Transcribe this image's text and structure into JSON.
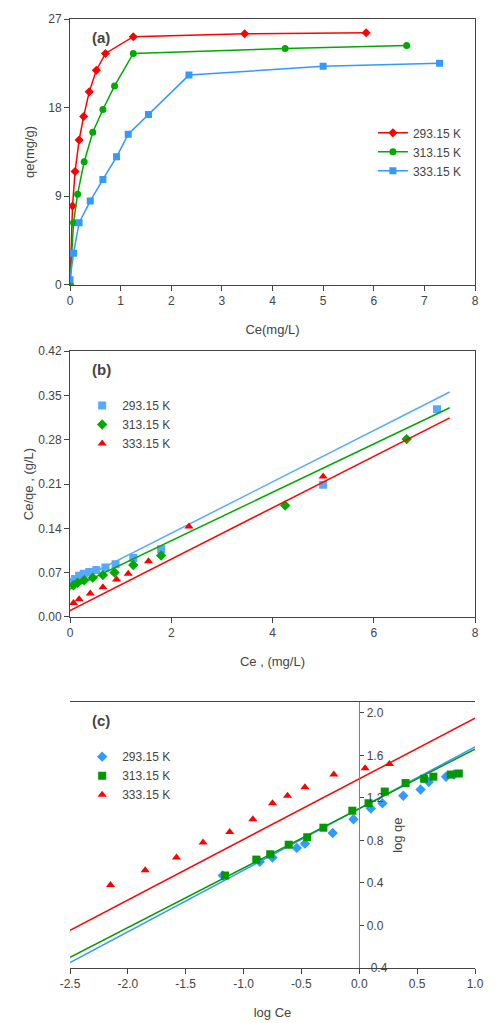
{
  "chart_data": [
    {
      "type": "line",
      "title": "(a)",
      "xlabel": "Ce(mg/L)",
      "ylabel": "qe(mg/g)",
      "xlim": [
        0,
        8
      ],
      "ylim": [
        0,
        27
      ],
      "xticks": [
        0,
        1,
        2,
        3,
        4,
        5,
        6,
        7,
        8
      ],
      "yticks": [
        0,
        9,
        18,
        27
      ],
      "grid": false,
      "legend": "right",
      "series": [
        {
          "name": "293.15 K",
          "color": "red",
          "marker": "diamond",
          "x": [
            0.0,
            0.05,
            0.1,
            0.18,
            0.27,
            0.38,
            0.52,
            0.7,
            1.25,
            3.45,
            5.85
          ],
          "y": [
            0.0,
            8.0,
            11.5,
            14.7,
            17.1,
            19.6,
            21.8,
            23.5,
            25.2,
            25.5,
            25.6
          ]
        },
        {
          "name": "313.15 K",
          "color": "#00aa00",
          "marker": "circle",
          "x": [
            0.0,
            0.07,
            0.15,
            0.28,
            0.45,
            0.65,
            0.88,
            1.25,
            4.25,
            6.65
          ],
          "y": [
            0.0,
            6.3,
            9.2,
            12.5,
            15.5,
            17.8,
            20.2,
            23.5,
            24.0,
            24.3
          ]
        },
        {
          "name": "333.15 K",
          "color": "#3399ff",
          "marker": "square",
          "x": [
            0.0,
            0.07,
            0.18,
            0.4,
            0.65,
            0.92,
            1.15,
            1.55,
            2.35,
            5.0,
            7.3
          ],
          "y": [
            0.5,
            3.2,
            6.3,
            8.5,
            10.7,
            13.0,
            15.3,
            17.3,
            21.3,
            22.2,
            22.5
          ]
        }
      ]
    },
    {
      "type": "scatter",
      "title": "(b)",
      "xlabel": "Ce , (mg/L)",
      "ylabel": "Ce/qe , (g/L)",
      "xlim": [
        0,
        8
      ],
      "ylim": [
        0,
        0.42
      ],
      "xticks": [
        0,
        2,
        4,
        6,
        8
      ],
      "yticks": [
        {
          "value": 0,
          "label": "0.00"
        },
        0.07,
        0.14,
        0.21,
        0.28,
        0.35,
        0.42
      ],
      "grid": false,
      "legend": "upper left",
      "series": [
        {
          "name": "293.15 K",
          "color": "#55aaff",
          "marker": "square",
          "x": [
            0.05,
            0.1,
            0.18,
            0.27,
            0.38,
            0.52,
            0.7,
            0.9,
            1.25,
            1.8,
            5.0,
            7.25
          ],
          "y": [
            0.055,
            0.06,
            0.065,
            0.068,
            0.071,
            0.074,
            0.078,
            0.083,
            0.093,
            0.107,
            0.209,
            0.328
          ],
          "fit": {
            "x": [
              0,
              7.5
            ],
            "y": [
              0.051,
              0.3555
            ]
          }
        },
        {
          "name": "313.15 K",
          "color": "#00aa00",
          "marker": "diamond",
          "x": [
            0.07,
            0.15,
            0.28,
            0.45,
            0.65,
            0.88,
            1.25,
            1.8,
            4.25,
            6.65
          ],
          "y": [
            0.05,
            0.054,
            0.058,
            0.062,
            0.066,
            0.07,
            0.082,
            0.097,
            0.176,
            0.281
          ],
          "fit": {
            "x": [
              0,
              7.5
            ],
            "y": [
              0.044,
              0.3305
            ]
          }
        },
        {
          "name": "333.15 K",
          "color": "red",
          "marker": "triangle-up",
          "x": [
            0.07,
            0.18,
            0.4,
            0.65,
            0.92,
            1.15,
            1.55,
            2.35,
            5.0
          ],
          "y": [
            0.022,
            0.028,
            0.037,
            0.047,
            0.059,
            0.068,
            0.088,
            0.143,
            0.222
          ],
          "fit": {
            "x": [
              0,
              7.5
            ],
            "y": [
              0.01,
              0.3145
            ]
          }
        }
      ]
    },
    {
      "type": "scatter",
      "title": "(c)",
      "xlabel": "log Ce",
      "ylabel": "log qe",
      "xlim": [
        -2.5,
        1.0
      ],
      "ylim": [
        -0.4,
        2.1
      ],
      "xticks": [
        -2.5,
        {
          "value": -2,
          "label": "-2.0"
        },
        -1.5,
        {
          "value": -1,
          "label": "-1.0"
        },
        -0.5,
        {
          "value": 0,
          "label": "0.0"
        },
        0.5,
        {
          "value": 1,
          "label": "1.0"
        }
      ],
      "yticks": [
        -0.4,
        {
          "value": 0,
          "label": "0.0"
        },
        0.4,
        0.8,
        1.2,
        1.6,
        {
          "value": 2,
          "label": "2.0"
        }
      ],
      "vline_x": 0,
      "grid": false,
      "legend": "upper left",
      "series": [
        {
          "name": "293.15 K",
          "color": "#3399ff",
          "marker": "diamond",
          "x": [
            -1.18,
            -0.86,
            -0.75,
            -0.54,
            -0.47,
            -0.23,
            -0.05,
            0.1,
            0.2,
            0.38,
            0.53,
            0.6,
            0.75,
            0.82
          ],
          "y": [
            0.47,
            0.6,
            0.64,
            0.73,
            0.77,
            0.87,
            1.0,
            1.1,
            1.15,
            1.22,
            1.28,
            1.35,
            1.4,
            1.42
          ],
          "fit": {
            "x": [
              -2.5,
              1.0
            ],
            "y": [
              -0.35,
              1.68
            ]
          }
        },
        {
          "name": "313.15 K",
          "color": "#009900",
          "marker": "square",
          "x": [
            -1.16,
            -0.89,
            -0.77,
            -0.61,
            -0.45,
            -0.31,
            -0.06,
            0.08,
            0.22,
            0.4,
            0.56,
            0.64,
            0.79,
            0.86
          ],
          "y": [
            0.47,
            0.62,
            0.67,
            0.76,
            0.83,
            0.92,
            1.08,
            1.15,
            1.26,
            1.34,
            1.38,
            1.4,
            1.42,
            1.43
          ],
          "fit": {
            "x": [
              -2.5,
              1.0
            ],
            "y": [
              -0.3,
              1.66
            ]
          }
        },
        {
          "name": "333.15 K",
          "color": "red",
          "marker": "triangle-up",
          "x": [
            -2.15,
            -1.85,
            -1.58,
            -1.35,
            -1.12,
            -0.92,
            -0.75,
            -0.62,
            -0.47,
            -0.22,
            0.05,
            0.26
          ],
          "y": [
            0.38,
            0.52,
            0.64,
            0.78,
            0.88,
            1.0,
            1.15,
            1.22,
            1.3,
            1.42,
            1.48,
            1.52
          ],
          "fit": {
            "x": [
              -2.5,
              1.0
            ],
            "y": [
              -0.045,
              1.95
            ]
          }
        }
      ]
    }
  ]
}
